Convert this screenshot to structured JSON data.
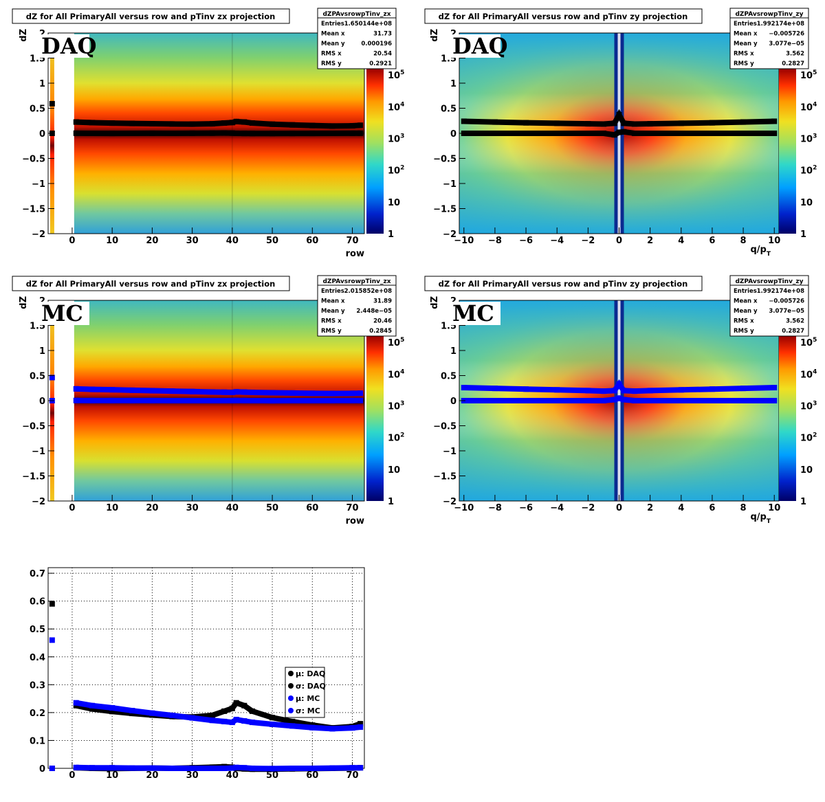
{
  "panels": [
    {
      "id": "daq-zx",
      "title": "dZ for All PrimaryAll versus row and pTinv zx projection",
      "tag": "DAQ",
      "ylabel": "dZ",
      "xlabel": "row",
      "xticks": [
        "0",
        "10",
        "20",
        "30",
        "40",
        "50",
        "60",
        "70"
      ],
      "yticks": [
        "−2",
        "−1.5",
        "−1",
        "−0.5",
        "0",
        "0.5",
        "1",
        "1.5",
        "2"
      ],
      "zticks": [
        "1",
        "10",
        "10^2",
        "10^3",
        "10^4",
        "10^5"
      ],
      "stats": {
        "name": "dZPAvsrowpTinv_zx",
        "rows": [
          {
            "k": "Entries",
            "v": "1.650144e+08"
          },
          {
            "k": "Mean x",
            "v": "31.73"
          },
          {
            "k": "Mean y",
            "v": "0.000196"
          },
          {
            "k": "RMS x",
            "v": "20.54"
          },
          {
            "k": "RMS y",
            "v": "0.2921"
          }
        ]
      }
    },
    {
      "id": "daq-zy",
      "title": "dZ for All PrimaryAll versus row and pTinv zy projection",
      "tag": "DAQ",
      "ylabel": "dZ",
      "xlabel": "q/p_T",
      "xticks": [
        "−10",
        "−8",
        "−6",
        "−4",
        "−2",
        "0",
        "2",
        "4",
        "6",
        "8",
        "10"
      ],
      "yticks": [
        "−2",
        "−1.5",
        "−1",
        "−0.5",
        "0",
        "0.5",
        "1",
        "1.5",
        "2"
      ],
      "zticks": [
        "1",
        "10",
        "10^2",
        "10^3",
        "10^4",
        "10^5"
      ],
      "stats": {
        "name": "dZPAvsrowpTinv_zy",
        "rows": [
          {
            "k": "Entries",
            "v": "1.992174e+08"
          },
          {
            "k": "Mean x",
            "v": "−0.005726"
          },
          {
            "k": "Mean y",
            "v": "3.077e−05"
          },
          {
            "k": "RMS x",
            "v": "3.562"
          },
          {
            "k": "RMS y",
            "v": "0.2827"
          }
        ]
      }
    },
    {
      "id": "mc-zx",
      "title": "dZ for All PrimaryAll versus row and pTinv zx projection",
      "tag": "MC",
      "ylabel": "dZ",
      "xlabel": "row",
      "xticks": [
        "0",
        "10",
        "20",
        "30",
        "40",
        "50",
        "60",
        "70"
      ],
      "yticks": [
        "−2",
        "−1.5",
        "−1",
        "−0.5",
        "0",
        "0.5",
        "1",
        "1.5",
        "2"
      ],
      "zticks": [
        "1",
        "10",
        "10^2",
        "10^3",
        "10^4",
        "10^5"
      ],
      "stats": {
        "name": "dZPAvsrowpTinv_zx",
        "rows": [
          {
            "k": "Entries",
            "v": "2.015852e+08"
          },
          {
            "k": "Mean x",
            "v": "31.89"
          },
          {
            "k": "Mean y",
            "v": "2.448e−05"
          },
          {
            "k": "RMS x",
            "v": "20.46"
          },
          {
            "k": "RMS y",
            "v": "0.2845"
          }
        ]
      }
    },
    {
      "id": "mc-zy",
      "title": "dZ for All PrimaryAll versus row and pTinv zy projection",
      "tag": "MC",
      "ylabel": "dZ",
      "xlabel": "q/p_T",
      "xticks": [
        "−10",
        "−8",
        "−6",
        "−4",
        "−2",
        "0",
        "2",
        "4",
        "6",
        "8",
        "10"
      ],
      "yticks": [
        "−2",
        "−1.5",
        "−1",
        "−0.5",
        "0",
        "0.5",
        "1",
        "1.5",
        "2"
      ],
      "zticks": [
        "1",
        "10",
        "10^2",
        "10^3",
        "10^4",
        "10^5"
      ],
      "stats": {
        "name": "dZPAvsrowpTinv_zy",
        "rows": [
          {
            "k": "Entries",
            "v": "1.992174e+08"
          },
          {
            "k": "Mean x",
            "v": "−0.005726"
          },
          {
            "k": "Mean y",
            "v": "3.077e−05"
          },
          {
            "k": "RMS x",
            "v": "3.562"
          },
          {
            "k": "RMS y",
            "v": "0.2827"
          }
        ]
      }
    }
  ],
  "colors": {
    "daq": "#000000",
    "mc": "#0000ff",
    "frame": "#000000"
  },
  "chart_data": [
    {
      "type": "heatmap",
      "panel": "daq-zx",
      "title": "dZ for All PrimaryAll versus row and pTinv zx projection",
      "xlabel": "row",
      "ylabel": "dZ",
      "xlim": [
        -6,
        73
      ],
      "ylim": [
        -2,
        2
      ],
      "zscale": "log",
      "zlim": [
        1,
        100000
      ],
      "overlay": {
        "x": [
          -5,
          1,
          5,
          10,
          15,
          20,
          25,
          30,
          35,
          38,
          40,
          41,
          43,
          45,
          50,
          55,
          60,
          65,
          70,
          72
        ],
        "mu": [
          0.0,
          0.002,
          0.0,
          -0.001,
          0.0,
          0.001,
          0.0,
          0.002,
          0.004,
          0.006,
          0.004,
          0.0,
          -0.002,
          -0.003,
          -0.003,
          -0.002,
          -0.001,
          0.0,
          0.001,
          0.002
        ],
        "sigma": [
          0.59,
          0.225,
          0.213,
          0.204,
          0.197,
          0.191,
          0.186,
          0.184,
          0.19,
          0.205,
          0.215,
          0.235,
          0.225,
          0.205,
          0.182,
          0.168,
          0.155,
          0.145,
          0.15,
          0.16
        ]
      }
    },
    {
      "type": "heatmap",
      "panel": "daq-zy",
      "title": "dZ for All PrimaryAll versus row and pTinv zy projection",
      "xlabel": "q/p_T",
      "ylabel": "dZ",
      "xlim": [
        -10.3,
        10.3
      ],
      "ylim": [
        -2,
        2
      ],
      "zscale": "log",
      "zlim": [
        1,
        100000
      ],
      "overlay": {
        "x": [
          -10,
          -8,
          -6,
          -4,
          -2,
          -1,
          -0.3,
          0,
          0.3,
          1,
          2,
          4,
          6,
          8,
          10
        ],
        "mu": [
          0.0,
          0.0,
          0.0,
          0.0,
          0.0,
          0.0,
          -0.03,
          0.02,
          0.03,
          0.0,
          0.0,
          0.0,
          0.0,
          0.0,
          0.0
        ],
        "sigma": [
          0.24,
          0.225,
          0.21,
          0.2,
          0.19,
          0.185,
          0.2,
          0.37,
          0.2,
          0.185,
          0.19,
          0.2,
          0.21,
          0.225,
          0.24
        ]
      }
    },
    {
      "type": "heatmap",
      "panel": "mc-zx",
      "title": "dZ for All PrimaryAll versus row and pTinv zx projection",
      "xlabel": "row",
      "ylabel": "dZ",
      "xlim": [
        -6,
        73
      ],
      "ylim": [
        -2,
        2
      ],
      "zscale": "log",
      "zlim": [
        1,
        100000
      ],
      "overlay": {
        "x": [
          -5,
          1,
          5,
          10,
          15,
          20,
          25,
          30,
          35,
          38,
          40,
          41,
          43,
          45,
          50,
          55,
          60,
          65,
          70,
          72
        ],
        "mu": [
          0.0,
          0.003,
          0.002,
          0.002,
          0.001,
          0.001,
          0.0,
          0.0,
          0.0,
          0.0,
          0.001,
          0.003,
          0.002,
          0.0,
          -0.001,
          0.0,
          0.0,
          0.001,
          0.002,
          0.002
        ],
        "sigma": [
          0.46,
          0.235,
          0.225,
          0.217,
          0.207,
          0.198,
          0.19,
          0.181,
          0.172,
          0.168,
          0.165,
          0.175,
          0.17,
          0.165,
          0.158,
          0.152,
          0.146,
          0.142,
          0.145,
          0.148
        ]
      }
    },
    {
      "type": "heatmap",
      "panel": "mc-zy",
      "title": "dZ for All PrimaryAll versus row and pTinv zy projection",
      "xlabel": "q/p_T",
      "ylabel": "dZ",
      "xlim": [
        -10.3,
        10.3
      ],
      "ylim": [
        -2,
        2
      ],
      "zscale": "log",
      "zlim": [
        1,
        100000
      ],
      "overlay": {
        "x": [
          -10,
          -8,
          -6,
          -4,
          -2,
          -1,
          -0.3,
          0,
          0.3,
          1,
          2,
          4,
          6,
          8,
          10
        ],
        "mu": [
          0.0,
          0.0,
          0.0,
          0.0,
          0.0,
          0.0,
          0.02,
          0.05,
          0.02,
          0.0,
          0.0,
          0.0,
          0.0,
          0.0,
          0.0
        ],
        "sigma": [
          0.26,
          0.245,
          0.23,
          0.215,
          0.2,
          0.19,
          0.2,
          0.33,
          0.2,
          0.19,
          0.2,
          0.215,
          0.23,
          0.245,
          0.26
        ]
      }
    },
    {
      "type": "scatter",
      "panel": "summary",
      "xlim": [
        -6,
        73
      ],
      "ylim": [
        0,
        0.72
      ],
      "xticks": [
        "0",
        "10",
        "20",
        "30",
        "40",
        "50",
        "60",
        "70"
      ],
      "yticks": [
        "0",
        "0.1",
        "0.2",
        "0.3",
        "0.4",
        "0.5",
        "0.6",
        "0.7"
      ],
      "grid": true,
      "legend_placement": "right",
      "series": [
        {
          "name": "μ: DAQ",
          "color": "#000000",
          "x": [
            -5,
            1,
            5,
            10,
            15,
            20,
            25,
            30,
            35,
            38,
            40,
            41,
            43,
            45,
            50,
            55,
            60,
            65,
            70,
            72
          ],
          "values": [
            0.0,
            0.002,
            0.0,
            -0.001,
            0.0,
            0.001,
            0.0,
            0.002,
            0.004,
            0.006,
            0.004,
            0.0,
            -0.002,
            -0.003,
            -0.003,
            -0.002,
            -0.001,
            0.0,
            0.001,
            0.002
          ]
        },
        {
          "name": "σ: DAQ",
          "color": "#000000",
          "x": [
            -5,
            1,
            5,
            10,
            15,
            20,
            25,
            30,
            35,
            38,
            40,
            41,
            43,
            45,
            50,
            55,
            60,
            65,
            70,
            72
          ],
          "values": [
            0.59,
            0.225,
            0.213,
            0.204,
            0.197,
            0.191,
            0.186,
            0.184,
            0.19,
            0.205,
            0.215,
            0.235,
            0.225,
            0.205,
            0.182,
            0.168,
            0.155,
            0.145,
            0.15,
            0.16
          ]
        },
        {
          "name": "μ: MC",
          "color": "#0000ff",
          "x": [
            -5,
            1,
            5,
            10,
            15,
            20,
            25,
            30,
            35,
            38,
            40,
            41,
            43,
            45,
            50,
            55,
            60,
            65,
            70,
            72
          ],
          "values": [
            0.0,
            0.003,
            0.002,
            0.002,
            0.001,
            0.001,
            0.0,
            0.0,
            0.0,
            0.0,
            0.001,
            0.003,
            0.002,
            0.0,
            -0.001,
            0.0,
            0.0,
            0.001,
            0.002,
            0.002
          ]
        },
        {
          "name": "σ: MC",
          "color": "#0000ff",
          "x": [
            -5,
            1,
            5,
            10,
            15,
            20,
            25,
            30,
            35,
            38,
            40,
            41,
            43,
            45,
            50,
            55,
            60,
            65,
            70,
            72
          ],
          "values": [
            0.46,
            0.235,
            0.225,
            0.217,
            0.207,
            0.198,
            0.19,
            0.181,
            0.172,
            0.168,
            0.165,
            0.175,
            0.17,
            0.165,
            0.158,
            0.152,
            0.146,
            0.142,
            0.145,
            0.148
          ]
        }
      ]
    }
  ]
}
